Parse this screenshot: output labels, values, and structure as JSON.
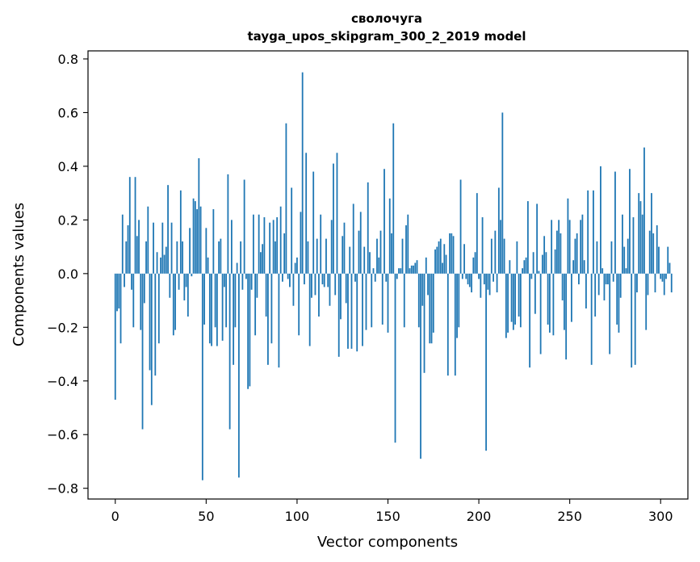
{
  "chart_data": {
    "type": "bar",
    "title": "сволочуга",
    "subtitle": "tayga_upos_skipgram_300_2_2019 model",
    "xlabel": "Vector components",
    "ylabel": "Components values",
    "xlim": [
      -15,
      315
    ],
    "ylim": [
      -0.84,
      0.83
    ],
    "x_ticks": [
      0,
      50,
      100,
      150,
      200,
      250,
      300
    ],
    "x_tick_labels": [
      "0",
      "50",
      "100",
      "150",
      "200",
      "250",
      "300"
    ],
    "y_ticks": [
      -0.8,
      -0.6,
      -0.4,
      -0.2,
      0.0,
      0.2,
      0.4,
      0.6,
      0.8
    ],
    "y_tick_labels": [
      "−0.8",
      "−0.6",
      "−0.4",
      "−0.2",
      "0.0",
      "0.2",
      "0.4",
      "0.6",
      "0.8"
    ],
    "bar_color": "#1f77b4",
    "grid": false,
    "values": [
      -0.47,
      -0.14,
      -0.13,
      -0.26,
      0.22,
      -0.05,
      0.12,
      0.18,
      0.36,
      -0.06,
      -0.2,
      0.36,
      0.14,
      0.2,
      -0.21,
      -0.58,
      -0.11,
      0.12,
      0.25,
      -0.36,
      -0.49,
      0.19,
      -0.38,
      0.08,
      -0.26,
      0.06,
      0.19,
      0.07,
      0.1,
      0.33,
      -0.09,
      0.19,
      -0.23,
      -0.21,
      0.12,
      -0.06,
      0.31,
      0.12,
      -0.1,
      -0.05,
      -0.16,
      0.17,
      -0.01,
      0.28,
      0.27,
      0.24,
      0.43,
      0.25,
      -0.77,
      -0.19,
      0.17,
      0.06,
      -0.26,
      -0.27,
      0.24,
      -0.2,
      -0.27,
      0.12,
      0.13,
      -0.25,
      -0.05,
      -0.2,
      0.37,
      -0.58,
      0.2,
      -0.34,
      -0.2,
      0.04,
      -0.76,
      0.12,
      -0.06,
      0.35,
      -0.02,
      -0.43,
      -0.42,
      -0.06,
      0.22,
      -0.23,
      -0.09,
      0.22,
      0.08,
      0.11,
      0.21,
      -0.16,
      -0.34,
      0.19,
      -0.26,
      0.2,
      0.12,
      0.21,
      -0.35,
      0.25,
      -0.03,
      0.15,
      0.56,
      -0.02,
      -0.05,
      0.32,
      -0.12,
      0.04,
      0.06,
      -0.23,
      0.23,
      0.75,
      -0.04,
      0.45,
      0.12,
      -0.27,
      -0.09,
      0.38,
      -0.08,
      0.13,
      -0.16,
      0.22,
      -0.04,
      -0.05,
      0.13,
      -0.05,
      -0.12,
      0.2,
      0.41,
      -0.08,
      0.45,
      -0.31,
      -0.17,
      0.14,
      0.19,
      -0.11,
      -0.28,
      0.1,
      -0.28,
      0.26,
      -0.03,
      -0.29,
      0.16,
      0.23,
      -0.27,
      0.1,
      -0.21,
      0.34,
      0.08,
      -0.2,
      0.02,
      -0.03,
      0.13,
      0.06,
      0.16,
      -0.19,
      0.39,
      -0.03,
      -0.22,
      0.28,
      0.15,
      0.56,
      -0.63,
      -0.02,
      0.02,
      0.02,
      0.13,
      -0.2,
      0.18,
      0.22,
      0.02,
      0.03,
      0.03,
      0.04,
      0.05,
      -0.2,
      -0.69,
      -0.12,
      -0.37,
      0.06,
      -0.08,
      -0.26,
      -0.26,
      -0.22,
      0.09,
      0.1,
      0.12,
      0.13,
      0.04,
      0.11,
      0.07,
      -0.38,
      0.15,
      0.15,
      0.14,
      -0.38,
      -0.24,
      -0.2,
      0.35,
      -0.02,
      0.11,
      -0.02,
      -0.04,
      -0.05,
      -0.07,
      0.06,
      0.08,
      0.3,
      -0.02,
      -0.09,
      0.21,
      -0.04,
      -0.66,
      -0.06,
      -0.08,
      0.13,
      -0.03,
      0.16,
      -0.07,
      0.32,
      0.2,
      0.6,
      0.13,
      -0.24,
      -0.22,
      0.05,
      -0.18,
      -0.21,
      -0.19,
      0.12,
      -0.16,
      -0.2,
      0.02,
      0.05,
      0.06,
      0.27,
      -0.35,
      -0.02,
      0.08,
      -0.15,
      0.26,
      0.01,
      -0.3,
      0.07,
      0.14,
      0.08,
      -0.19,
      -0.22,
      0.2,
      -0.23,
      0.09,
      0.16,
      0.2,
      0.15,
      -0.1,
      -0.21,
      -0.32,
      0.28,
      0.2,
      -0.18,
      0.05,
      0.13,
      0.15,
      -0.04,
      0.2,
      0.22,
      0.05,
      -0.13,
      0.31,
      0.0,
      -0.34,
      0.31,
      -0.16,
      0.12,
      -0.08,
      0.4,
      0.02,
      -0.1,
      -0.04,
      -0.04,
      -0.3,
      0.12,
      -0.03,
      0.38,
      -0.19,
      -0.22,
      -0.09,
      0.22,
      0.1,
      0.02,
      0.13,
      0.39,
      -0.35,
      0.21,
      -0.34,
      -0.07,
      0.3,
      0.27,
      0.22,
      0.47,
      -0.21,
      -0.08,
      0.16,
      0.3,
      0.15,
      -0.07,
      0.18,
      0.1,
      -0.02,
      -0.03,
      -0.08,
      -0.02,
      0.1,
      0.04,
      -0.07
    ]
  }
}
